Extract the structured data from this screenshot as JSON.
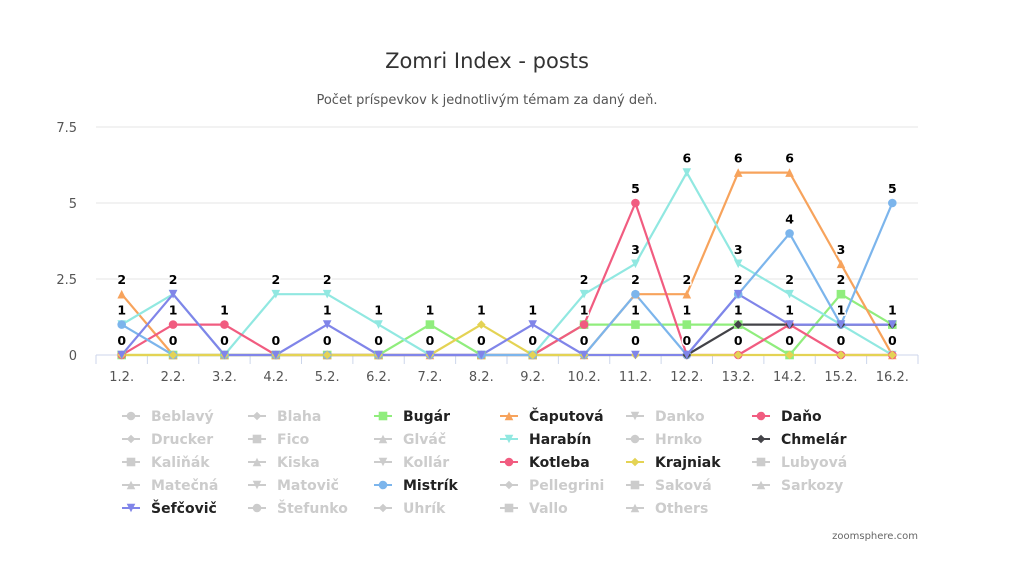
{
  "chart_data": {
    "type": "line",
    "title": "Zomri Index - posts",
    "subtitle": "Počet príspevkov k jednotlivým témam za daný deň.",
    "x": [
      "1.2.",
      "2.2.",
      "3.2.",
      "4.2.",
      "5.2.",
      "6.2.",
      "7.2.",
      "8.2.",
      "9.2.",
      "10.2.",
      "11.2.",
      "12.2.",
      "13.2.",
      "14.2.",
      "15.2.",
      "16.2."
    ],
    "ylim": [
      0,
      7.5
    ],
    "yticks": [
      "0",
      "2.5",
      "5",
      "7.5"
    ],
    "grid": true,
    "legend_position": "bottom",
    "series": [
      {
        "name": "Bugár",
        "color": "#90ed7d",
        "marker": "square",
        "visible": true,
        "values": [
          0,
          0,
          0,
          0,
          0,
          0,
          1,
          0,
          0,
          1,
          1,
          1,
          1,
          0,
          2,
          1
        ]
      },
      {
        "name": "Čaputová",
        "color": "#f7a35c",
        "marker": "triangle",
        "visible": true,
        "values": [
          2,
          0,
          0,
          0,
          0,
          0,
          0,
          0,
          0,
          0,
          2,
          2,
          6,
          6,
          3,
          0
        ]
      },
      {
        "name": "Harabín",
        "color": "#91e8e1",
        "marker": "triangle-down",
        "visible": true,
        "values": [
          1,
          2,
          0,
          2,
          2,
          1,
          0,
          0,
          0,
          2,
          3,
          6,
          3,
          2,
          1,
          0
        ]
      },
      {
        "name": "Kotleba",
        "color": "#f15c80",
        "marker": "circle",
        "visible": true,
        "values": [
          0,
          1,
          1,
          0,
          0,
          0,
          0,
          0,
          0,
          1,
          5,
          0,
          0,
          1,
          0,
          0
        ]
      },
      {
        "name": "Mistrík",
        "color": "#7cb5ec",
        "marker": "circle",
        "visible": true,
        "values": [
          1,
          0,
          0,
          0,
          0,
          0,
          0,
          0,
          0,
          0,
          2,
          0,
          2,
          4,
          1,
          5
        ]
      },
      {
        "name": "Krajniak",
        "color": "#e4d354",
        "marker": "diamond",
        "visible": true,
        "values": [
          0,
          0,
          0,
          0,
          0,
          0,
          0,
          1,
          0,
          0,
          0,
          0,
          0,
          0,
          0,
          0
        ]
      },
      {
        "name": "Chmelár",
        "color": "#434348",
        "marker": "diamond",
        "visible": true,
        "values": [
          null,
          null,
          null,
          null,
          null,
          null,
          null,
          null,
          null,
          null,
          null,
          0,
          1,
          1,
          1,
          1
        ]
      },
      {
        "name": "Šefčovič",
        "color": "#8085e9",
        "marker": "triangle-down",
        "visible": true,
        "values": [
          0,
          2,
          0,
          0,
          1,
          0,
          0,
          0,
          1,
          0,
          0,
          0,
          2,
          1,
          1,
          1
        ]
      }
    ],
    "data_labels": [
      {
        "x": 0,
        "y": 2,
        "text": "2"
      },
      {
        "x": 0,
        "y": 1,
        "text": "1"
      },
      {
        "x": 0,
        "y": 0,
        "text": "0"
      },
      {
        "x": 1,
        "y": 2,
        "text": "2"
      },
      {
        "x": 1,
        "y": 1,
        "text": "1"
      },
      {
        "x": 1,
        "y": 0,
        "text": "0"
      },
      {
        "x": 2,
        "y": 1,
        "text": "1"
      },
      {
        "x": 2,
        "y": 0,
        "text": "0"
      },
      {
        "x": 3,
        "y": 2,
        "text": "2"
      },
      {
        "x": 3,
        "y": 0,
        "text": "0"
      },
      {
        "x": 4,
        "y": 2,
        "text": "2"
      },
      {
        "x": 4,
        "y": 1,
        "text": "1"
      },
      {
        "x": 4,
        "y": 0,
        "text": "0"
      },
      {
        "x": 5,
        "y": 1,
        "text": "1"
      },
      {
        "x": 5,
        "y": 0,
        "text": "0"
      },
      {
        "x": 6,
        "y": 1,
        "text": "1"
      },
      {
        "x": 6,
        "y": 0,
        "text": "0"
      },
      {
        "x": 7,
        "y": 1,
        "text": "1"
      },
      {
        "x": 7,
        "y": 0,
        "text": "0"
      },
      {
        "x": 8,
        "y": 1,
        "text": "1"
      },
      {
        "x": 8,
        "y": 0,
        "text": "0"
      },
      {
        "x": 9,
        "y": 2,
        "text": "2"
      },
      {
        "x": 9,
        "y": 1,
        "text": "1"
      },
      {
        "x": 9,
        "y": 0,
        "text": "0"
      },
      {
        "x": 10,
        "y": 5,
        "text": "5"
      },
      {
        "x": 10,
        "y": 3,
        "text": "3"
      },
      {
        "x": 10,
        "y": 2,
        "text": "2"
      },
      {
        "x": 10,
        "y": 1,
        "text": "1"
      },
      {
        "x": 10,
        "y": 0,
        "text": "0"
      },
      {
        "x": 11,
        "y": 6,
        "text": "6"
      },
      {
        "x": 11,
        "y": 2,
        "text": "2"
      },
      {
        "x": 11,
        "y": 1,
        "text": "1"
      },
      {
        "x": 11,
        "y": 0,
        "text": "0"
      },
      {
        "x": 12,
        "y": 6,
        "text": "6"
      },
      {
        "x": 12,
        "y": 3,
        "text": "3"
      },
      {
        "x": 12,
        "y": 2,
        "text": "2"
      },
      {
        "x": 12,
        "y": 1,
        "text": "1"
      },
      {
        "x": 12,
        "y": 0,
        "text": "0"
      },
      {
        "x": 13,
        "y": 6,
        "text": "6"
      },
      {
        "x": 13,
        "y": 4,
        "text": "4"
      },
      {
        "x": 13,
        "y": 2,
        "text": "2"
      },
      {
        "x": 13,
        "y": 1,
        "text": "1"
      },
      {
        "x": 13,
        "y": 0,
        "text": "0"
      },
      {
        "x": 14,
        "y": 3,
        "text": "3"
      },
      {
        "x": 14,
        "y": 2,
        "text": "2"
      },
      {
        "x": 14,
        "y": 1,
        "text": "1"
      },
      {
        "x": 14,
        "y": 0,
        "text": "0"
      },
      {
        "x": 15,
        "y": 5,
        "text": "5"
      },
      {
        "x": 15,
        "y": 1,
        "text": "1"
      },
      {
        "x": 15,
        "y": 0,
        "text": "0"
      }
    ]
  },
  "legend": [
    {
      "name": "Beblavý",
      "marker": "circle",
      "color": "#cccccc",
      "visible": false
    },
    {
      "name": "Blaha",
      "marker": "diamond",
      "color": "#cccccc",
      "visible": false
    },
    {
      "name": "Bugár",
      "marker": "square",
      "color": "#90ed7d",
      "visible": true
    },
    {
      "name": "Čaputová",
      "marker": "triangle",
      "color": "#f7a35c",
      "visible": true
    },
    {
      "name": "Danko",
      "marker": "triangle-down",
      "color": "#cccccc",
      "visible": false
    },
    {
      "name": "Daňo",
      "marker": "circle",
      "color": "#f15c80",
      "visible": true
    },
    {
      "name": "Drucker",
      "marker": "diamond",
      "color": "#cccccc",
      "visible": false
    },
    {
      "name": "Fico",
      "marker": "square",
      "color": "#cccccc",
      "visible": false
    },
    {
      "name": "Glváč",
      "marker": "triangle",
      "color": "#cccccc",
      "visible": false
    },
    {
      "name": "Harabín",
      "marker": "triangle-down",
      "color": "#91e8e1",
      "visible": true
    },
    {
      "name": "Hrnko",
      "marker": "circle",
      "color": "#cccccc",
      "visible": false
    },
    {
      "name": "Chmelár",
      "marker": "diamond",
      "color": "#434348",
      "visible": true
    },
    {
      "name": "Kaliňák",
      "marker": "square",
      "color": "#cccccc",
      "visible": false
    },
    {
      "name": "Kiska",
      "marker": "triangle",
      "color": "#cccccc",
      "visible": false
    },
    {
      "name": "Kollár",
      "marker": "triangle-down",
      "color": "#cccccc",
      "visible": false
    },
    {
      "name": "Kotleba",
      "marker": "circle",
      "color": "#f15c80",
      "visible": true
    },
    {
      "name": "Krajniak",
      "marker": "diamond",
      "color": "#e4d354",
      "visible": true
    },
    {
      "name": "Lubyová",
      "marker": "square",
      "color": "#cccccc",
      "visible": false
    },
    {
      "name": "Matečná",
      "marker": "triangle",
      "color": "#cccccc",
      "visible": false
    },
    {
      "name": "Matovič",
      "marker": "triangle-down",
      "color": "#cccccc",
      "visible": false
    },
    {
      "name": "Mistrík",
      "marker": "circle",
      "color": "#7cb5ec",
      "visible": true
    },
    {
      "name": "Pellegrini",
      "marker": "diamond",
      "color": "#cccccc",
      "visible": false
    },
    {
      "name": "Saková",
      "marker": "square",
      "color": "#cccccc",
      "visible": false
    },
    {
      "name": "Sarkozy",
      "marker": "triangle",
      "color": "#cccccc",
      "visible": false
    },
    {
      "name": "Šefčovič",
      "marker": "triangle-down",
      "color": "#8085e9",
      "visible": true
    },
    {
      "name": "Štefunko",
      "marker": "circle",
      "color": "#cccccc",
      "visible": false
    },
    {
      "name": "Uhrík",
      "marker": "diamond",
      "color": "#cccccc",
      "visible": false
    },
    {
      "name": "Vallo",
      "marker": "square",
      "color": "#cccccc",
      "visible": false
    },
    {
      "name": "Others",
      "marker": "triangle",
      "color": "#cccccc",
      "visible": false
    }
  ],
  "credit": "zoomsphere.com"
}
